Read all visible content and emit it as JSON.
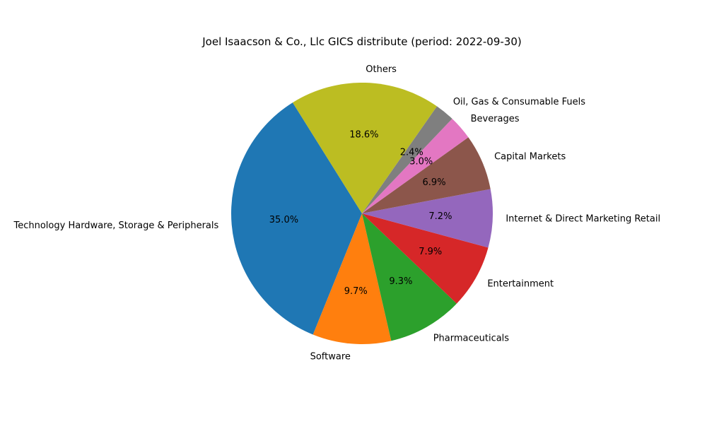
{
  "chart_data": {
    "type": "pie",
    "title": "Joel Isaacson & Co., Llc GICS distribute (period: 2022-09-30)",
    "start_angle_deg": 122,
    "direction": "counterclockwise",
    "slices": [
      {
        "label": "Technology Hardware, Storage & Peripherals",
        "value": 35.0,
        "pct_text": "35.0%",
        "color": "#1f77b4"
      },
      {
        "label": "Software",
        "value": 9.7,
        "pct_text": "9.7%",
        "color": "#ff7f0e"
      },
      {
        "label": "Pharmaceuticals",
        "value": 9.3,
        "pct_text": "9.3%",
        "color": "#2ca02c"
      },
      {
        "label": "Entertainment",
        "value": 7.9,
        "pct_text": "7.9%",
        "color": "#d62728"
      },
      {
        "label": "Internet & Direct Marketing Retail",
        "value": 7.2,
        "pct_text": "7.2%",
        "color": "#9467bd"
      },
      {
        "label": "Capital Markets",
        "value": 6.9,
        "pct_text": "6.9%",
        "color": "#8c564b"
      },
      {
        "label": "Beverages",
        "value": 3.0,
        "pct_text": "3.0%",
        "color": "#e377c2"
      },
      {
        "label": "Oil, Gas & Consumable Fuels",
        "value": 2.4,
        "pct_text": "2.4%",
        "color": "#7f7f7f"
      },
      {
        "label": "Others",
        "value": 18.6,
        "pct_text": "18.6%",
        "color": "#bcbd22"
      }
    ]
  }
}
